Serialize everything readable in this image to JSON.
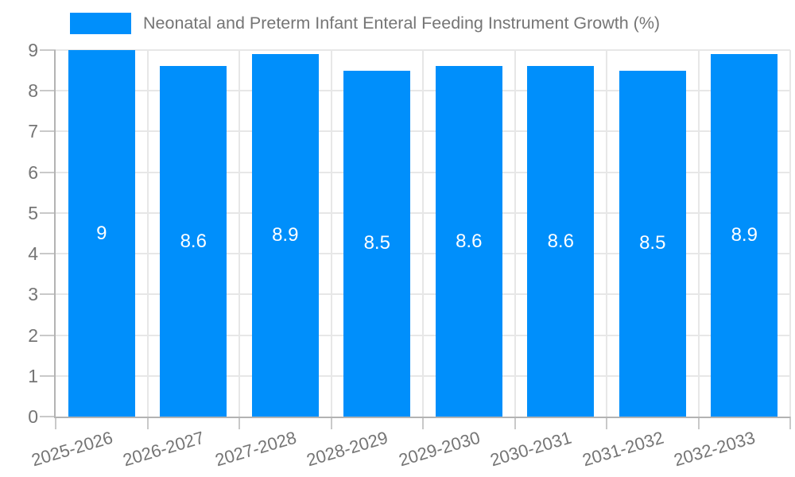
{
  "legend": {
    "position": "top-left",
    "items": [
      {
        "label": "Neonatal and Preterm Infant Enteral Feeding Instrument Growth (%)",
        "color": "#008FFB"
      }
    ]
  },
  "chart_data": {
    "type": "bar",
    "title": "Neonatal and Preterm Infant Enteral Feeding Instrument Growth (%)",
    "series_name": "Neonatal and Preterm Infant Enteral Feeding Instrument Growth (%)",
    "categories": [
      "2025-2026",
      "2026-2027",
      "2027-2028",
      "2028-2029",
      "2029-2030",
      "2030-2031",
      "2031-2032",
      "2032-2033"
    ],
    "values": [
      9,
      8.6,
      8.9,
      8.5,
      8.6,
      8.6,
      8.5,
      8.9
    ],
    "value_labels": [
      "9",
      "8.6",
      "8.9",
      "8.5",
      "8.6",
      "8.6",
      "8.5",
      "8.9"
    ],
    "xlabel": "",
    "ylabel": "",
    "ylim": [
      0,
      9
    ],
    "yticks": [
      0,
      1,
      2,
      3,
      4,
      5,
      6,
      7,
      8,
      9
    ],
    "grid": true,
    "legend_position": "top",
    "colors": {
      "bar": "#008FFB",
      "value_label": "#ffffff",
      "axis_text": "#757575",
      "gridline": "#e7e7e7",
      "axis_line": "#b3b3b3",
      "tick": "#c9c9c9",
      "background": "#ffffff"
    }
  }
}
